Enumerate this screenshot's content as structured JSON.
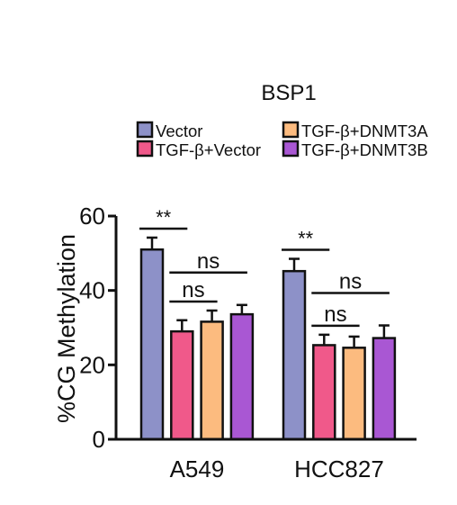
{
  "chart_data": {
    "type": "bar",
    "title": "BSP1",
    "ylabel": "%CG Methylation",
    "xlabel": "",
    "ylim": [
      0,
      60
    ],
    "yticks": [
      0,
      20,
      40,
      60
    ],
    "categories": [
      "A549",
      "HCC827"
    ],
    "series": [
      {
        "name": "Vector",
        "color": "#8d91c8",
        "values": [
          51,
          45.2
        ],
        "errors": [
          3.2,
          3.3
        ]
      },
      {
        "name": "TGF-β+Vector",
        "color": "#f0598a",
        "values": [
          29,
          25.3
        ],
        "errors": [
          3.0,
          2.8
        ]
      },
      {
        "name": "TGF-β+DNMT3A",
        "color": "#fcbb7f",
        "values": [
          31.6,
          24.6
        ],
        "errors": [
          3.0,
          3.0
        ]
      },
      {
        "name": "TGF-β+DNMT3B",
        "color": "#a957d3",
        "values": [
          33.6,
          27.2
        ],
        "errors": [
          2.5,
          3.4
        ]
      }
    ],
    "legend": {
      "position": "top",
      "entries": [
        "Vector",
        "TGF-β+DNMT3A",
        "TGF-β+Vector",
        "TGF-β+DNMT3B"
      ]
    },
    "annotations": [
      {
        "group": 0,
        "from": 0,
        "to": 1,
        "label": "**"
      },
      {
        "group": 0,
        "from": 1,
        "to": 2,
        "label": "ns"
      },
      {
        "group": 0,
        "from": 1,
        "to": 3,
        "label": "ns"
      },
      {
        "group": 1,
        "from": 0,
        "to": 1,
        "label": "**"
      },
      {
        "group": 1,
        "from": 1,
        "to": 2,
        "label": "ns"
      },
      {
        "group": 1,
        "from": 1,
        "to": 3,
        "label": "ns"
      }
    ],
    "grid": false
  }
}
